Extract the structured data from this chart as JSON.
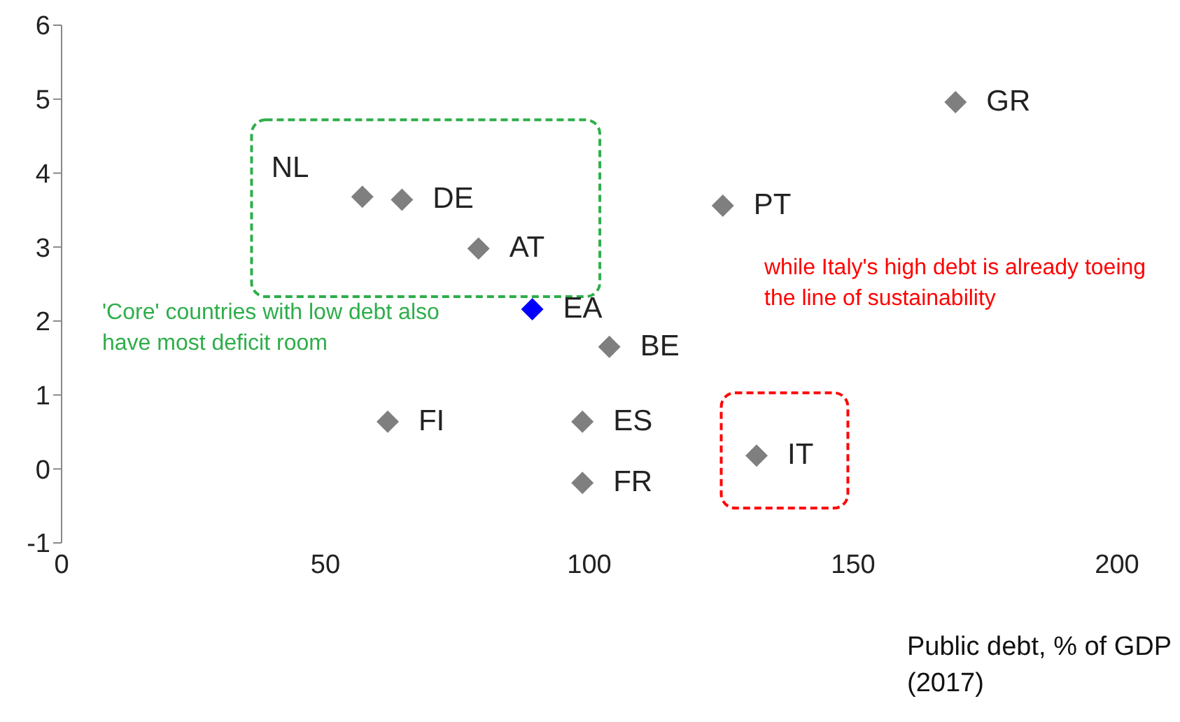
{
  "chart_data": {
    "type": "scatter",
    "xlabel": "Public debt, % of GDP (2017)",
    "x": [
      57,
      64.5,
      79,
      89.2,
      103.8,
      125.3,
      169.4,
      61.8,
      98.7,
      98.7,
      131.7
    ],
    "values": [
      3.68,
      3.64,
      2.98,
      2.16,
      1.65,
      3.56,
      4.96,
      0.64,
      0.64,
      -0.19,
      0.18
    ],
    "colors": [
      "#7f7f7f",
      "#7f7f7f",
      "#7f7f7f",
      "#0000ff",
      "#7f7f7f",
      "#7f7f7f",
      "#7f7f7f",
      "#7f7f7f",
      "#7f7f7f",
      "#7f7f7f",
      "#7f7f7f"
    ],
    "xlim": [
      0,
      200
    ],
    "xticks": [
      0,
      50,
      100,
      150,
      200
    ],
    "ylim": [
      -1,
      6
    ],
    "yticks": [
      -1,
      0,
      1,
      2,
      3,
      4,
      5,
      6
    ],
    "grid": false,
    "legend": false,
    "marker": "diamond",
    "annotations": [
      {
        "text": "NL",
        "x": 57,
        "y": 3.68
      },
      {
        "text": "DE",
        "x": 64.5,
        "y": 3.64
      },
      {
        "text": "AT",
        "x": 79,
        "y": 2.98
      },
      {
        "text": "EA",
        "x": 89.2,
        "y": 2.16
      },
      {
        "text": "BE",
        "x": 103.8,
        "y": 1.65
      },
      {
        "text": "PT",
        "x": 125.3,
        "y": 3.56
      },
      {
        "text": "GR",
        "x": 169.4,
        "y": 4.96
      },
      {
        "text": "FI",
        "x": 61.8,
        "y": 0.64
      },
      {
        "text": "ES",
        "x": 98.7,
        "y": 0.64
      },
      {
        "text": "FR",
        "x": 98.7,
        "y": -0.19
      },
      {
        "text": "IT",
        "x": 131.7,
        "y": 0.18
      },
      "'Core' countries with low debt also have most deficit room",
      "while Italy's high debt is already toeing the line of sustainability"
    ]
  }
}
